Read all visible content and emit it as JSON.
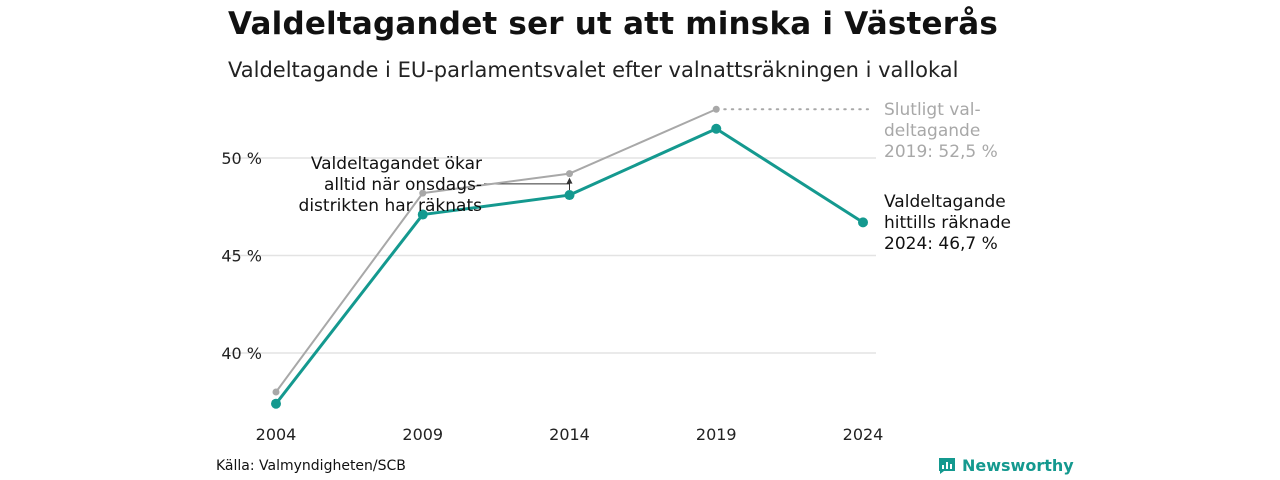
{
  "title": "Valdeltagandet ser ut att minska i Västerås",
  "subtitle": "Valdeltagande i EU-parlamentsvalet efter valnattsräkningen i vallokal",
  "source": "Källa: Valmyndigheten/SCB",
  "brand": {
    "name": "Newsworthy",
    "icon": "newsworthy-logo-icon"
  },
  "colors": {
    "counted": "#14998f",
    "final": "#a8a8a8",
    "text": "#111111",
    "grid": "#e3e3e3"
  },
  "chart_data": {
    "type": "line",
    "x": [
      "2004",
      "2009",
      "2014",
      "2019",
      "2024"
    ],
    "ylim": [
      36,
      53
    ],
    "ytick_labels": [
      "40 %",
      "45 %",
      "50 %"
    ],
    "yticks": [
      40,
      45,
      50
    ],
    "grid": true,
    "series": [
      {
        "values": [
          38.0,
          48.2,
          49.2,
          52.5,
          null
        ],
        "color": "#a8a8a8"
      },
      {
        "values": [
          37.4,
          47.1,
          48.1,
          51.5,
          46.7
        ],
        "color": "#14998f"
      }
    ],
    "annotations": [
      {
        "lines": [
          "Slutligt val-",
          "deltagande",
          "2019: 52,5 %"
        ],
        "color": "#a8a8a8"
      },
      {
        "lines": [
          "Valdeltagande",
          "hittills räknade",
          "2024: 46,7 %"
        ],
        "color": "#111111"
      },
      {
        "lines": [
          "Valdeltagandet ökar",
          "alltid när onsdags-",
          "distrikten har räknats"
        ],
        "color": "#111111"
      }
    ]
  }
}
